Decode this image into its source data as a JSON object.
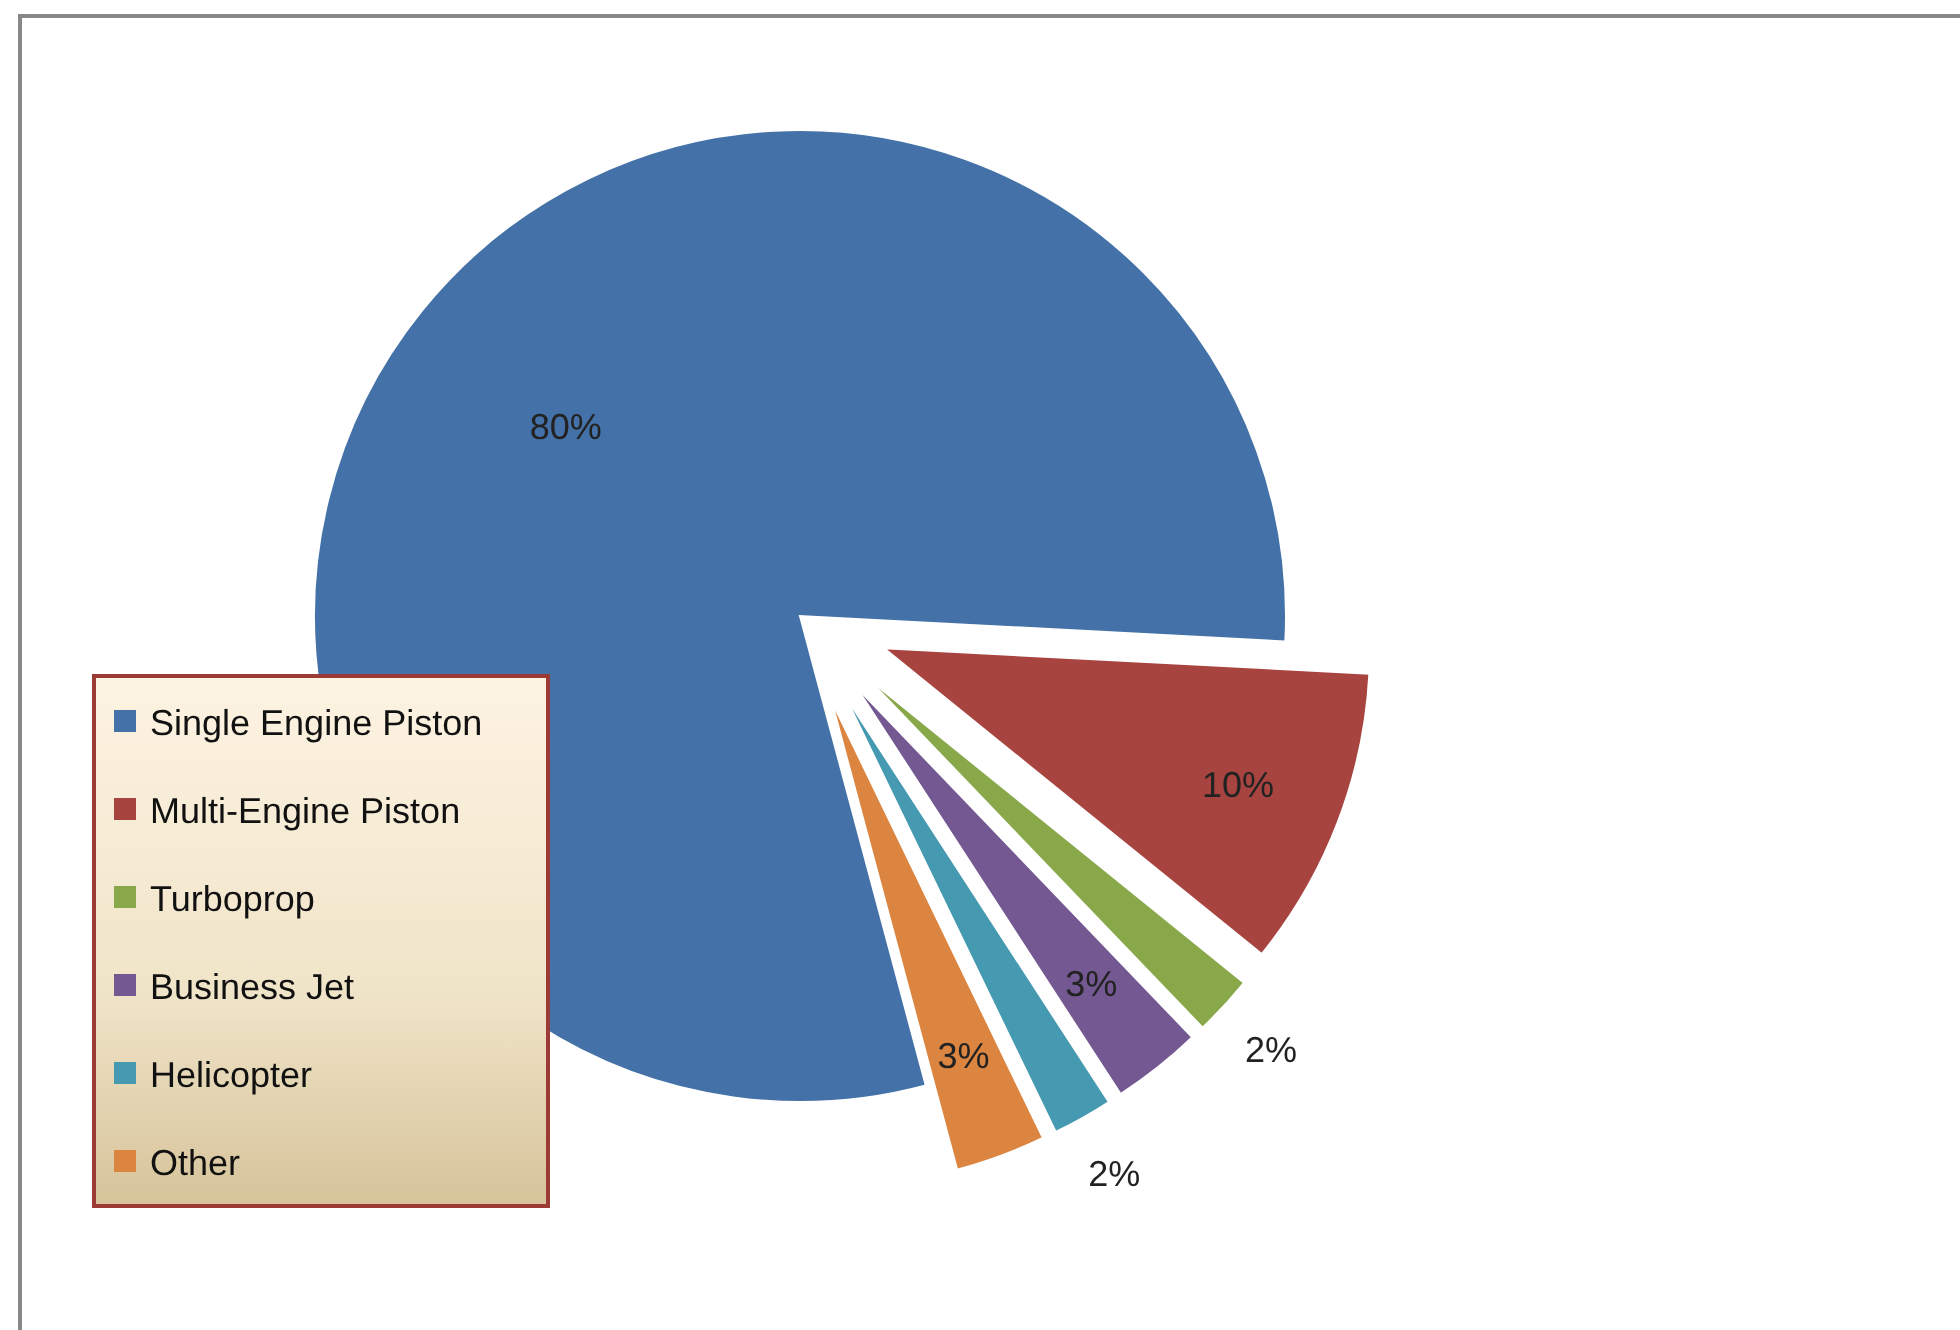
{
  "chart_data": {
    "type": "pie",
    "categories": [
      "Single Engine Piston",
      "Multi-Engine Piston",
      "Turboprop",
      "Business Jet",
      "Helicopter",
      "Other"
    ],
    "values": [
      80,
      10,
      2,
      3,
      2,
      3
    ],
    "colors": [
      "#4472a8",
      "#a84440",
      "#88a84a",
      "#735891",
      "#4599b0",
      "#dc8540"
    ],
    "value_labels": [
      "80%",
      "10%",
      "2%",
      "3%",
      "2%",
      "3%"
    ],
    "legend": "left"
  }
}
